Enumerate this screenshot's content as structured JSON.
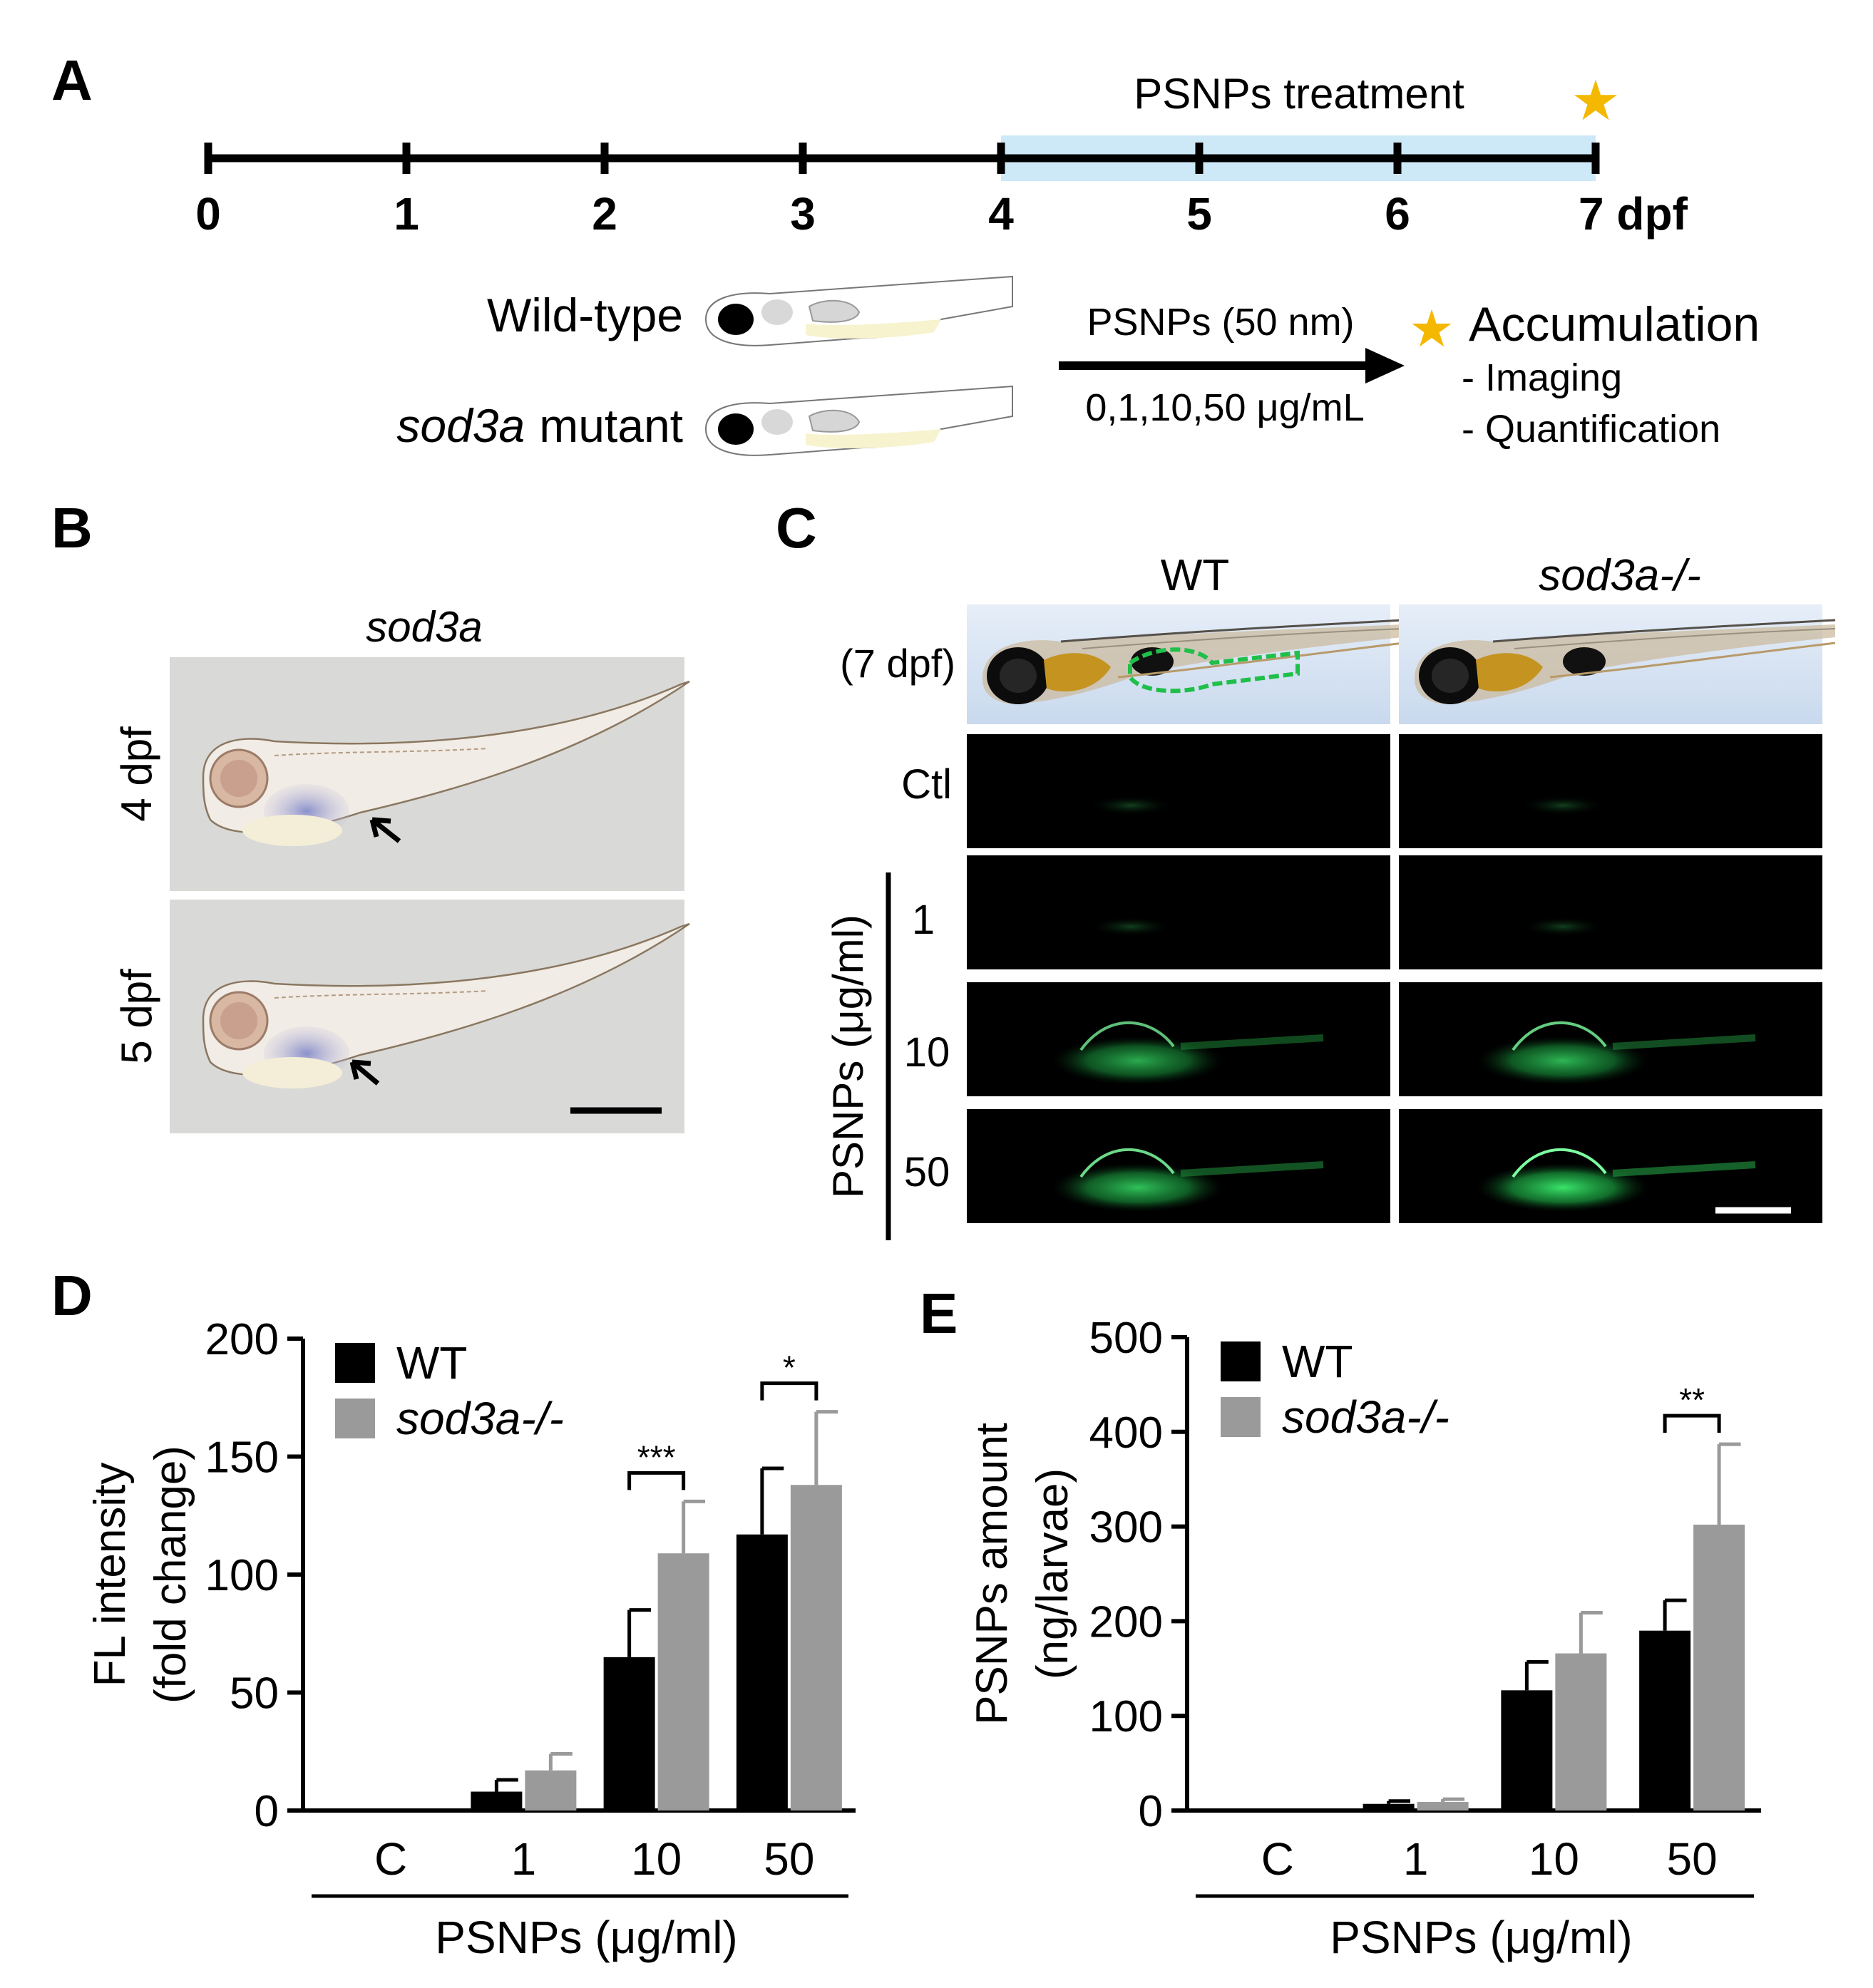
{
  "panels": {
    "A": {
      "label": "A",
      "timeline": {
        "ticks": [
          "0",
          "1",
          "2",
          "3",
          "4",
          "5",
          "6",
          "7 dpf"
        ],
        "treatment_label": "PSNPs treatment",
        "treatment_start": 4,
        "treatment_end": 7,
        "treatment_color": "#cde9f7",
        "star_color": "#f5b800"
      },
      "groups": [
        "Wild-type",
        "mutant"
      ],
      "group_italic_prefix": "sod3a",
      "arrow_top_label": "PSNPs (50 nm)",
      "arrow_bottom_label": "0,1,10,50 μg/mL",
      "outcome_title": "Accumulation",
      "outcome_items": [
        "- Imaging",
        "- Quantification"
      ]
    },
    "B": {
      "label": "B",
      "title": "sod3a",
      "rows": [
        "4 dpf",
        "5 dpf"
      ]
    },
    "C": {
      "label": "C",
      "columns": [
        "WT",
        "sod3a-/-"
      ],
      "top_row_label": "(7 dpf)",
      "rows": [
        "Ctl",
        "1",
        "10",
        "50"
      ],
      "group_label": "PSNPs (μg/ml)",
      "fluorescence_color": "#2bd15a"
    },
    "D": {
      "label": "D",
      "chart_data": {
        "type": "bar",
        "categories": [
          "C",
          "1",
          "10",
          "50"
        ],
        "series": [
          {
            "name": "WT",
            "values": [
              0,
              8,
              65,
              117
            ],
            "errors": [
              0,
              5,
              20,
              28
            ],
            "color": "#000000"
          },
          {
            "name": "sod3a-/-",
            "values": [
              0,
              17,
              109,
              138
            ],
            "errors": [
              0,
              7,
              22,
              31
            ],
            "color": "#9a9a9a"
          }
        ],
        "ylabel_line1": "FL intensity",
        "ylabel_line2": "(fold change)",
        "xlabel": "PSNPs (μg/ml)",
        "ylim": [
          0,
          200
        ],
        "yticks": [
          "0",
          "50",
          "100",
          "150",
          "200"
        ],
        "significance": [
          {
            "category_index": 2,
            "label": "***"
          },
          {
            "category_index": 3,
            "label": "*"
          }
        ],
        "legend_position": "top-left"
      }
    },
    "E": {
      "label": "E",
      "chart_data": {
        "type": "bar",
        "categories": [
          "C",
          "1",
          "10",
          "50"
        ],
        "series": [
          {
            "name": "WT",
            "values": [
              0,
              7,
              127,
              190
            ],
            "errors": [
              0,
              3,
              30,
              32
            ],
            "color": "#000000"
          },
          {
            "name": "sod3a-/-",
            "values": [
              0,
              9,
              166,
              302
            ],
            "errors": [
              0,
              3,
              43,
              85
            ],
            "color": "#9a9a9a"
          }
        ],
        "ylabel_line1": "PSNPs amount",
        "ylabel_line2": "(ng/larvae)",
        "xlabel": "PSNPs (μg/ml)",
        "ylim": [
          0,
          500
        ],
        "yticks": [
          "0",
          "100",
          "200",
          "300",
          "400",
          "500"
        ],
        "significance": [
          {
            "category_index": 3,
            "label": "**"
          }
        ],
        "legend_position": "top-left"
      }
    }
  }
}
